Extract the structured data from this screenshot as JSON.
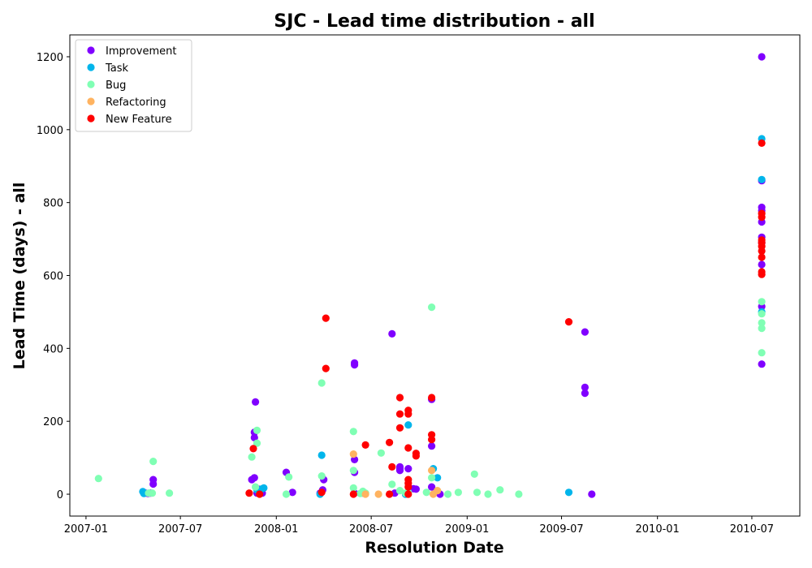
{
  "chart_data": {
    "type": "scatter",
    "title": "SJC - Lead time distribution - all",
    "xlabel": "Resolution Date",
    "ylabel": "Lead Time (days) - all",
    "x_is_date": true,
    "xlim": [
      "2006-12-01",
      "2010-10-01"
    ],
    "ylim": [
      -60,
      1260
    ],
    "xticks": [
      {
        "value": "2007-01-01",
        "label": "2007-01"
      },
      {
        "value": "2007-07-01",
        "label": "2007-07"
      },
      {
        "value": "2008-01-01",
        "label": "2008-01"
      },
      {
        "value": "2008-07-01",
        "label": "2008-07"
      },
      {
        "value": "2009-01-01",
        "label": "2009-01"
      },
      {
        "value": "2009-07-01",
        "label": "2009-07"
      },
      {
        "value": "2010-01-01",
        "label": "2010-01"
      },
      {
        "value": "2010-07-01",
        "label": "2010-07"
      }
    ],
    "yticks": [
      0,
      200,
      400,
      600,
      800,
      1000,
      1200
    ],
    "grid": false,
    "legend_position": "top-left",
    "series": [
      {
        "name": "Improvement",
        "color": "#8000ff",
        "points": [
          [
            "2007-04-25",
            3
          ],
          [
            "2007-04-30",
            2
          ],
          [
            "2007-05-10",
            40
          ],
          [
            "2007-05-10",
            28
          ],
          [
            "2007-05-05",
            3
          ],
          [
            "2007-11-15",
            40
          ],
          [
            "2007-11-20",
            45
          ],
          [
            "2007-11-20",
            170
          ],
          [
            "2007-11-20",
            155
          ],
          [
            "2007-11-22",
            253
          ],
          [
            "2007-11-25",
            3
          ],
          [
            "2007-12-01",
            5
          ],
          [
            "2007-12-05",
            3
          ],
          [
            "2007-11-28",
            14
          ],
          [
            "2008-01-20",
            60
          ],
          [
            "2008-02-01",
            5
          ],
          [
            "2008-03-25",
            3
          ],
          [
            "2008-03-30",
            12
          ],
          [
            "2008-04-01",
            40
          ],
          [
            "2008-05-30",
            360
          ],
          [
            "2008-05-30",
            355
          ],
          [
            "2008-05-30",
            95
          ],
          [
            "2008-05-30",
            60
          ],
          [
            "2008-05-30",
            3
          ],
          [
            "2008-06-15",
            3
          ],
          [
            "2008-08-10",
            440
          ],
          [
            "2008-08-15",
            3
          ],
          [
            "2008-08-25",
            75
          ],
          [
            "2008-08-25",
            70
          ],
          [
            "2008-08-25",
            65
          ],
          [
            "2008-09-10",
            70
          ],
          [
            "2008-09-20",
            15
          ],
          [
            "2008-09-25",
            14
          ],
          [
            "2008-10-25",
            260
          ],
          [
            "2008-10-25",
            132
          ],
          [
            "2008-10-25",
            20
          ],
          [
            "2008-11-05",
            5
          ],
          [
            "2008-11-10",
            0
          ],
          [
            "2008-09-05",
            0
          ],
          [
            "2009-08-15",
            445
          ],
          [
            "2009-08-15",
            293
          ],
          [
            "2009-08-15",
            277
          ],
          [
            "2009-08-28",
            0
          ],
          [
            "2010-07-20",
            1200
          ],
          [
            "2010-07-20",
            860
          ],
          [
            "2010-07-20",
            787
          ],
          [
            "2010-07-20",
            778
          ],
          [
            "2010-07-20",
            747
          ],
          [
            "2010-07-20",
            705
          ],
          [
            "2010-07-20",
            690
          ],
          [
            "2010-07-20",
            630
          ],
          [
            "2010-07-20",
            515
          ],
          [
            "2010-07-20",
            357
          ]
        ]
      },
      {
        "name": "Task",
        "color": "#00b5eb",
        "points": [
          [
            "2007-04-20",
            7
          ],
          [
            "2007-04-22",
            2
          ],
          [
            "2007-11-25",
            12
          ],
          [
            "2007-12-05",
            15
          ],
          [
            "2007-12-08",
            17
          ],
          [
            "2008-03-25",
            0
          ],
          [
            "2008-03-28",
            107
          ],
          [
            "2008-09-10",
            190
          ],
          [
            "2008-09-05",
            0
          ],
          [
            "2008-10-28",
            70
          ],
          [
            "2008-11-05",
            45
          ],
          [
            "2009-07-15",
            5
          ],
          [
            "2010-07-20",
            975
          ],
          [
            "2010-07-20",
            863
          ],
          [
            "2010-07-20",
            500
          ]
        ]
      },
      {
        "name": "Bug",
        "color": "#80ffb4",
        "points": [
          [
            "2007-01-25",
            43
          ],
          [
            "2007-05-01",
            3
          ],
          [
            "2007-05-08",
            3
          ],
          [
            "2007-05-10",
            90
          ],
          [
            "2007-06-10",
            3
          ],
          [
            "2007-11-15",
            102
          ],
          [
            "2007-11-22",
            20
          ],
          [
            "2007-11-25",
            175
          ],
          [
            "2007-11-25",
            140
          ],
          [
            "2008-01-20",
            0
          ],
          [
            "2008-01-25",
            47
          ],
          [
            "2008-03-28",
            305
          ],
          [
            "2008-03-28",
            50
          ],
          [
            "2008-05-28",
            172
          ],
          [
            "2008-05-28",
            65
          ],
          [
            "2008-05-28",
            17
          ],
          [
            "2008-06-10",
            2
          ],
          [
            "2008-06-15",
            8
          ],
          [
            "2008-06-20",
            3
          ],
          [
            "2008-07-20",
            113
          ],
          [
            "2008-08-10",
            27
          ],
          [
            "2008-08-25",
            10
          ],
          [
            "2008-09-05",
            3
          ],
          [
            "2008-09-10",
            5
          ],
          [
            "2008-10-15",
            5
          ],
          [
            "2008-10-25",
            513
          ],
          [
            "2008-10-25",
            45
          ],
          [
            "2008-11-25",
            0
          ],
          [
            "2008-12-15",
            5
          ],
          [
            "2009-01-15",
            55
          ],
          [
            "2009-01-20",
            5
          ],
          [
            "2009-02-10",
            0
          ],
          [
            "2009-03-05",
            12
          ],
          [
            "2009-04-10",
            0
          ],
          [
            "2010-07-20",
            528
          ],
          [
            "2010-07-20",
            495
          ],
          [
            "2010-07-20",
            470
          ],
          [
            "2010-07-20",
            455
          ],
          [
            "2010-07-20",
            388
          ]
        ]
      },
      {
        "name": "Refactoring",
        "color": "#ffb360",
        "points": [
          [
            "2008-05-28",
            110
          ],
          [
            "2008-06-20",
            0
          ],
          [
            "2008-07-15",
            0
          ],
          [
            "2008-10-25",
            65
          ],
          [
            "2008-10-28",
            0
          ],
          [
            "2008-11-05",
            10
          ]
        ]
      },
      {
        "name": "New Feature",
        "color": "#ff0000",
        "points": [
          [
            "2007-11-10",
            3
          ],
          [
            "2007-11-18",
            125
          ],
          [
            "2007-11-30",
            0
          ],
          [
            "2008-03-28",
            5
          ],
          [
            "2008-04-05",
            483
          ],
          [
            "2008-04-05",
            345
          ],
          [
            "2008-05-28",
            0
          ],
          [
            "2008-06-20",
            135
          ],
          [
            "2008-08-05",
            142
          ],
          [
            "2008-08-10",
            75
          ],
          [
            "2008-08-25",
            265
          ],
          [
            "2008-08-25",
            220
          ],
          [
            "2008-08-25",
            182
          ],
          [
            "2008-09-10",
            230
          ],
          [
            "2008-09-10",
            220
          ],
          [
            "2008-09-10",
            127
          ],
          [
            "2008-09-10",
            40
          ],
          [
            "2008-09-10",
            30
          ],
          [
            "2008-09-10",
            20
          ],
          [
            "2008-09-10",
            0
          ],
          [
            "2008-09-25",
            112
          ],
          [
            "2008-09-25",
            105
          ],
          [
            "2008-10-25",
            265
          ],
          [
            "2008-10-25",
            163
          ],
          [
            "2008-10-25",
            150
          ],
          [
            "2008-08-05",
            0
          ],
          [
            "2009-07-15",
            473
          ],
          [
            "2010-07-20",
            963
          ],
          [
            "2010-07-20",
            770
          ],
          [
            "2010-07-20",
            760
          ],
          [
            "2010-07-20",
            697
          ],
          [
            "2010-07-20",
            690
          ],
          [
            "2010-07-20",
            680
          ],
          [
            "2010-07-20",
            667
          ],
          [
            "2010-07-20",
            650
          ],
          [
            "2010-07-20",
            610
          ],
          [
            "2010-07-20",
            603
          ]
        ]
      }
    ]
  }
}
